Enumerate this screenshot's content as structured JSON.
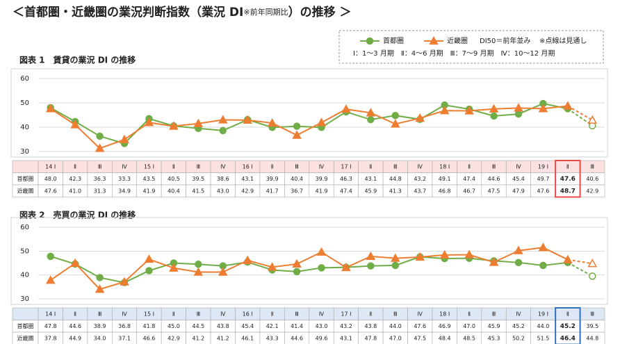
{
  "title": {
    "main": "＜首都圏・近畿圏の業況判断指数（業況 DI",
    "note": "※前年同期比",
    "end": "）の推移 ＞"
  },
  "legend": {
    "di50": "DI50＝前年並み",
    "dashed": "※点線は見通し",
    "quarters": "Ⅰ：1～3 月期　Ⅱ：4～6 月期　Ⅲ：7～9 月期　Ⅳ：10～12 月期"
  },
  "chart_data": [
    {
      "type": "line",
      "title": "図表 1　賃貸の業況 DI の推移",
      "categories": [
        "14 Ⅰ",
        "Ⅱ",
        "Ⅲ",
        "Ⅳ",
        "15 Ⅰ",
        "Ⅱ",
        "Ⅲ",
        "Ⅳ",
        "16 Ⅰ",
        "Ⅱ",
        "Ⅲ",
        "Ⅳ",
        "17 Ⅰ",
        "Ⅱ",
        "Ⅲ",
        "Ⅳ",
        "18 Ⅰ",
        "Ⅱ",
        "Ⅲ",
        "Ⅳ",
        "19 Ⅰ",
        "Ⅱ",
        "Ⅲ"
      ],
      "series": [
        {
          "name": "首都圏",
          "color": "#70ad47",
          "marker": "circle",
          "values": [
            48.0,
            42.3,
            36.3,
            33.3,
            43.5,
            40.5,
            39.5,
            38.6,
            43.1,
            39.9,
            40.4,
            39.9,
            46.3,
            43.1,
            44.8,
            43.2,
            49.1,
            47.4,
            44.6,
            45.4,
            49.7,
            47.6,
            40.6
          ],
          "value_labels": [
            "48.0",
            "42.3",
            "36.3",
            "33.3",
            "43.5",
            "40.5",
            "39.5",
            "38.6",
            "43.1",
            "39.9",
            "40.4",
            "39.9",
            "46.3",
            "43.1",
            "44.8",
            "43.2",
            "49.1",
            "47.4",
            "44.6",
            "45.4",
            "49.7",
            "47.6",
            "40.6"
          ]
        },
        {
          "name": "近畿圏",
          "color": "#ed7d31",
          "marker": "triangle",
          "values": [
            47.6,
            41.0,
            31.3,
            34.9,
            41.9,
            40.4,
            41.5,
            43.0,
            42.9,
            41.7,
            36.7,
            41.9,
            47.4,
            45.9,
            41.3,
            43.7,
            46.8,
            46.7,
            47.5,
            47.9,
            47.6,
            48.7,
            42.9
          ],
          "value_labels": [
            "47.6",
            "41.0",
            "31.3",
            "34.9",
            "41.9",
            "40.4",
            "41.5",
            "43.0",
            "42.9",
            "41.7",
            "36.7",
            "41.9",
            "47.4",
            "45.9",
            "41.3",
            "43.7",
            "46.8",
            "46.7",
            "47.5",
            "47.9",
            "47.6",
            "48.7",
            "42.9"
          ]
        }
      ],
      "ylim": [
        30,
        60
      ],
      "yticks": [
        30,
        40,
        50,
        60
      ],
      "grid": true,
      "forecast_start": 21,
      "highlight": 21,
      "header_color": "#fbe1e1",
      "highlight_color": "#e84a4a"
    },
    {
      "type": "line",
      "title": "図表 2　売買の業況 DI の推移",
      "categories": [
        "14 Ⅰ",
        "Ⅱ",
        "Ⅲ",
        "Ⅳ",
        "15 Ⅰ",
        "Ⅱ",
        "Ⅲ",
        "Ⅳ",
        "16 Ⅰ",
        "Ⅱ",
        "Ⅲ",
        "Ⅳ",
        "17 Ⅰ",
        "Ⅱ",
        "Ⅲ",
        "Ⅳ",
        "18 Ⅰ",
        "Ⅱ",
        "Ⅲ",
        "Ⅳ",
        "19 Ⅰ",
        "Ⅱ",
        "Ⅲ"
      ],
      "series": [
        {
          "name": "首都圏",
          "color": "#70ad47",
          "marker": "circle",
          "values": [
            47.8,
            44.6,
            38.9,
            36.8,
            41.8,
            45.0,
            44.5,
            43.8,
            45.4,
            42.1,
            41.4,
            43.0,
            43.2,
            43.8,
            44.0,
            47.6,
            46.9,
            47.0,
            45.9,
            45.2,
            44.0,
            45.2,
            39.5
          ],
          "value_labels": [
            "47.8",
            "44.6",
            "38.9",
            "36.8",
            "41.8",
            "45.0",
            "44.5",
            "43.8",
            "45.4",
            "42.1",
            "41.4",
            "43.0",
            "43.2",
            "43.8",
            "44.0",
            "47.6",
            "46.9",
            "47.0",
            "45.9",
            "45.2",
            "44.0",
            "45.2",
            "39.5"
          ]
        },
        {
          "name": "近畿圏",
          "color": "#ed7d31",
          "marker": "triangle",
          "values": [
            37.8,
            44.9,
            34.0,
            37.1,
            46.6,
            42.9,
            41.2,
            41.2,
            46.1,
            43.3,
            44.6,
            49.6,
            43.1,
            47.8,
            47.0,
            47.5,
            48.4,
            48.5,
            45.3,
            50.2,
            51.5,
            46.4,
            44.8
          ],
          "value_labels": [
            "37.8",
            "44.9",
            "34.0",
            "37.1",
            "46.6",
            "42.9",
            "41.2",
            "41.2",
            "46.1",
            "43.3",
            "44.6",
            "49.6",
            "43.1",
            "47.8",
            "47.0",
            "47.5",
            "48.4",
            "48.5",
            "45.3",
            "50.2",
            "51.5",
            "46.4",
            "44.8"
          ]
        }
      ],
      "ylim": [
        30,
        60
      ],
      "yticks": [
        30,
        40,
        50,
        60
      ],
      "grid": true,
      "forecast_start": 21,
      "highlight": 21,
      "header_color": "#dde8f4",
      "highlight_color": "#2f6fc0"
    }
  ]
}
